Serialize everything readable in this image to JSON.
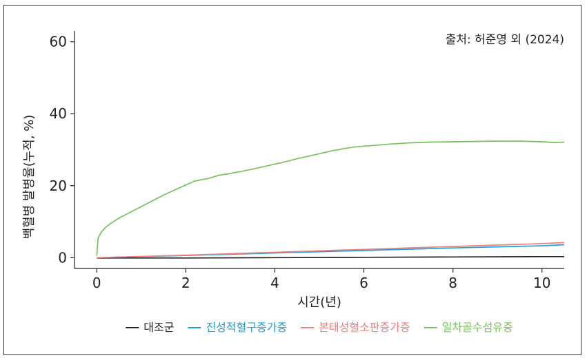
{
  "chart_data": {
    "type": "line",
    "source_note": "출처: 허준영 외 (2024)",
    "xlabel": "시간(년)",
    "ylabel": "백혈병 발병율(누적, %)",
    "xlim": [
      -0.5,
      10.5
    ],
    "ylim": [
      -3,
      63
    ],
    "x_ticks": [
      0,
      2,
      4,
      6,
      8,
      10
    ],
    "y_ticks": [
      0,
      20,
      40,
      60
    ],
    "grid": false,
    "legend_position": "bottom",
    "series": [
      {
        "name": "대조군",
        "color": "#222222",
        "points": [
          [
            0,
            -0.1
          ],
          [
            2,
            -0.1
          ],
          [
            4,
            0.0
          ],
          [
            6,
            0.1
          ],
          [
            8,
            0.2
          ],
          [
            10,
            0.3
          ],
          [
            10.5,
            0.3
          ]
        ]
      },
      {
        "name": "진성적혈구증가증",
        "color": "#1a9fd9",
        "points": [
          [
            0,
            0.0
          ],
          [
            2,
            0.6
          ],
          [
            4,
            1.3
          ],
          [
            6,
            2.0
          ],
          [
            8,
            2.7
          ],
          [
            10,
            3.3
          ],
          [
            10.5,
            3.6
          ]
        ]
      },
      {
        "name": "본태성혈소판증가증",
        "color": "#ef7f7f",
        "points": [
          [
            0,
            0.0
          ],
          [
            2,
            0.7
          ],
          [
            4,
            1.5
          ],
          [
            6,
            2.3
          ],
          [
            8,
            3.1
          ],
          [
            10,
            3.9
          ],
          [
            10.5,
            4.2
          ]
        ]
      },
      {
        "name": "일차골수섬유증",
        "color": "#77c25a",
        "points": [
          [
            0,
            0.5
          ],
          [
            0.03,
            5.5
          ],
          [
            0.1,
            7.0
          ],
          [
            0.2,
            8.5
          ],
          [
            0.35,
            9.8
          ],
          [
            0.5,
            11.0
          ],
          [
            0.75,
            12.6
          ],
          [
            1.0,
            14.2
          ],
          [
            1.25,
            15.8
          ],
          [
            1.5,
            17.4
          ],
          [
            1.75,
            18.8
          ],
          [
            2.0,
            20.2
          ],
          [
            2.2,
            21.3
          ],
          [
            2.5,
            22.0
          ],
          [
            2.75,
            22.9
          ],
          [
            3.0,
            23.4
          ],
          [
            3.25,
            24.0
          ],
          [
            3.5,
            24.6
          ],
          [
            3.75,
            25.3
          ],
          [
            4.0,
            26.0
          ],
          [
            4.25,
            26.7
          ],
          [
            4.5,
            27.5
          ],
          [
            4.75,
            28.2
          ],
          [
            5.0,
            28.9
          ],
          [
            5.25,
            29.6
          ],
          [
            5.5,
            30.2
          ],
          [
            5.75,
            30.7
          ],
          [
            6.0,
            31.0
          ],
          [
            6.25,
            31.2
          ],
          [
            6.5,
            31.5
          ],
          [
            7.0,
            31.9
          ],
          [
            7.5,
            32.1
          ],
          [
            8.0,
            32.2
          ],
          [
            8.5,
            32.3
          ],
          [
            9.0,
            32.4
          ],
          [
            9.5,
            32.4
          ],
          [
            10.0,
            32.2
          ],
          [
            10.25,
            32.0
          ],
          [
            10.5,
            32.1
          ]
        ]
      }
    ]
  }
}
